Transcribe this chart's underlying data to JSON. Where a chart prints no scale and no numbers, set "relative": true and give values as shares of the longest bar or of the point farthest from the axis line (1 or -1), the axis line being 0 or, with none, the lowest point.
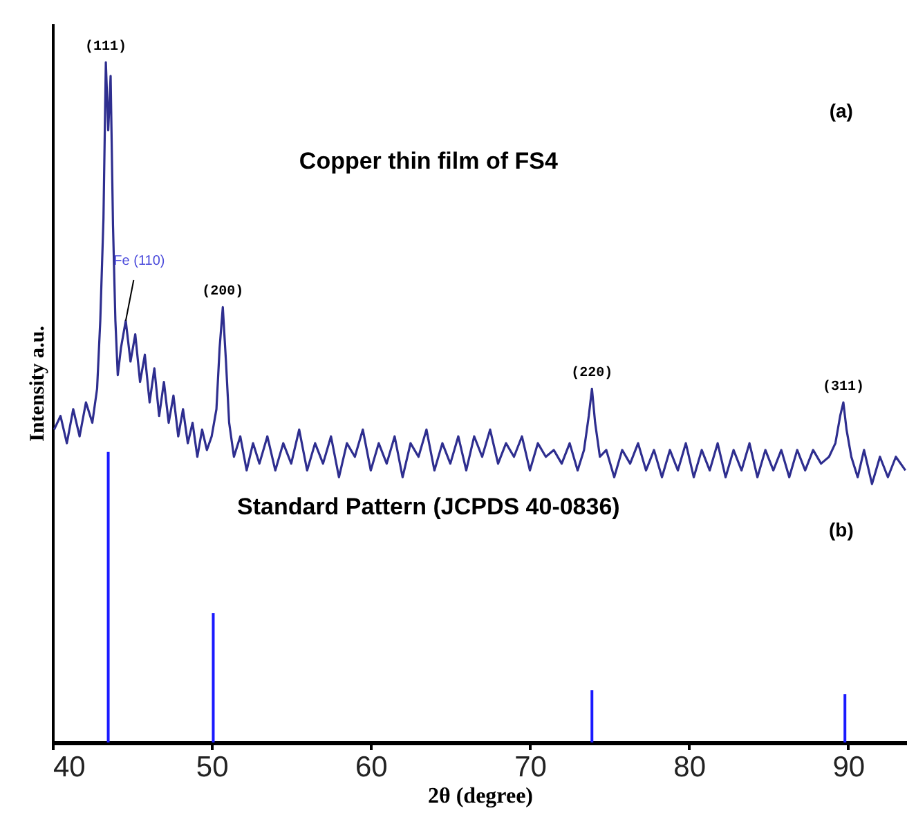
{
  "chart_data": {
    "type": "line",
    "xlabel": "2θ (degree)",
    "ylabel": "Intensity a.u.",
    "relative": true,
    "xlim": [
      40,
      93.7
    ],
    "xticks": [
      40,
      50,
      60,
      70,
      80,
      90
    ],
    "tick_labels": "x",
    "series": [
      {
        "color": "#2e2e8f",
        "x": [
          40.1,
          40.5,
          40.9,
          41.3,
          41.7,
          42.1,
          42.5,
          42.8,
          43.0,
          43.2,
          43.35,
          43.5,
          43.65,
          43.8,
          43.95,
          44.1,
          44.3,
          44.6,
          44.9,
          45.2,
          45.5,
          45.8,
          46.1,
          46.4,
          46.7,
          47.0,
          47.3,
          47.6,
          47.9,
          48.2,
          48.5,
          48.8,
          49.1,
          49.4,
          49.7,
          50.0,
          50.3,
          50.5,
          50.7,
          50.9,
          51.1,
          51.4,
          51.8,
          52.2,
          52.6,
          53.0,
          53.5,
          54.0,
          54.5,
          55.0,
          55.5,
          56.0,
          56.5,
          57.0,
          57.5,
          58.0,
          58.5,
          59.0,
          59.5,
          60.0,
          60.5,
          61.0,
          61.5,
          62.0,
          62.5,
          63.0,
          63.5,
          64.0,
          64.5,
          65.0,
          65.5,
          66.0,
          66.5,
          67.0,
          67.5,
          68.0,
          68.5,
          69.0,
          69.5,
          70.0,
          70.5,
          71.0,
          71.5,
          72.0,
          72.5,
          73.0,
          73.4,
          73.7,
          73.9,
          74.1,
          74.4,
          74.8,
          75.3,
          75.8,
          76.3,
          76.8,
          77.3,
          77.8,
          78.3,
          78.8,
          79.3,
          79.8,
          80.3,
          80.8,
          81.3,
          81.8,
          82.3,
          82.8,
          83.3,
          83.8,
          84.3,
          84.8,
          85.3,
          85.8,
          86.3,
          86.8,
          87.3,
          87.8,
          88.3,
          88.8,
          89.2,
          89.5,
          89.7,
          89.9,
          90.2,
          90.6,
          91.0,
          91.5,
          92.0,
          92.5,
          93.0,
          93.6
        ],
        "values": [
          0.46,
          0.48,
          0.44,
          0.49,
          0.45,
          0.5,
          0.47,
          0.52,
          0.62,
          0.77,
          1.0,
          0.9,
          0.98,
          0.76,
          0.62,
          0.54,
          0.58,
          0.62,
          0.56,
          0.6,
          0.53,
          0.57,
          0.5,
          0.55,
          0.48,
          0.53,
          0.47,
          0.51,
          0.45,
          0.49,
          0.44,
          0.47,
          0.42,
          0.46,
          0.43,
          0.45,
          0.49,
          0.58,
          0.64,
          0.56,
          0.47,
          0.42,
          0.45,
          0.4,
          0.44,
          0.41,
          0.45,
          0.4,
          0.44,
          0.41,
          0.46,
          0.4,
          0.44,
          0.41,
          0.45,
          0.39,
          0.44,
          0.42,
          0.46,
          0.4,
          0.44,
          0.41,
          0.45,
          0.39,
          0.44,
          0.42,
          0.46,
          0.4,
          0.44,
          0.41,
          0.45,
          0.4,
          0.45,
          0.42,
          0.46,
          0.41,
          0.44,
          0.42,
          0.45,
          0.4,
          0.44,
          0.42,
          0.43,
          0.41,
          0.44,
          0.4,
          0.43,
          0.48,
          0.52,
          0.47,
          0.42,
          0.43,
          0.39,
          0.43,
          0.41,
          0.44,
          0.4,
          0.43,
          0.39,
          0.43,
          0.4,
          0.44,
          0.39,
          0.43,
          0.4,
          0.44,
          0.39,
          0.43,
          0.4,
          0.44,
          0.39,
          0.43,
          0.4,
          0.43,
          0.39,
          0.43,
          0.4,
          0.43,
          0.41,
          0.42,
          0.44,
          0.48,
          0.5,
          0.46,
          0.42,
          0.39,
          0.43,
          0.38,
          0.42,
          0.39,
          0.42,
          0.4
        ]
      },
      {
        "type": "bar",
        "color": "#1a1aff",
        "x": [
          43.5,
          50.1,
          73.9,
          89.8
        ],
        "values": [
          0.427,
          0.19,
          0.077,
          0.071
        ]
      }
    ],
    "annotations": [
      {
        "text": "(111)",
        "x": 43.35,
        "y": 1.0
      },
      {
        "text": "Fe (110)",
        "x": 44.6,
        "y": 0.62
      },
      {
        "text": "(200)",
        "x": 50.7,
        "y": 0.64
      },
      {
        "text": "(220)",
        "x": 73.9,
        "y": 0.52
      },
      {
        "text": "(311)",
        "x": 89.7,
        "y": 0.5
      },
      "Copper thin film of FS4",
      "(a)",
      "Standard Pattern (JCPDS 40-0836)",
      "(b)"
    ]
  }
}
